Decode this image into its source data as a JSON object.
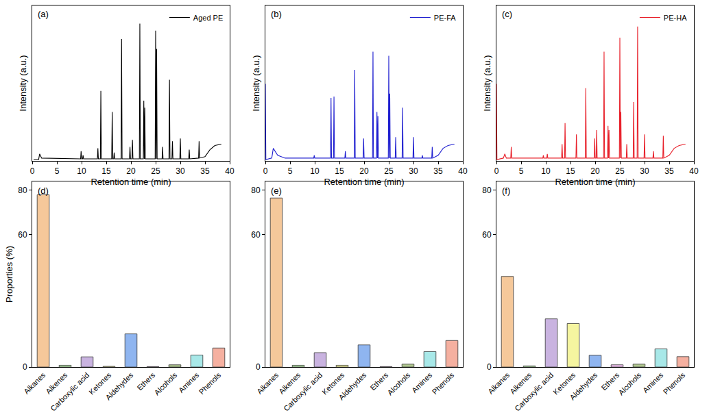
{
  "chart_data": [
    {
      "type": "line",
      "annotations": [
        "(a)"
      ],
      "x_label": "Retention time (min)",
      "y_label": "Intensity (a.u.)",
      "xlim": [
        0,
        40
      ],
      "xticks": [
        0,
        5,
        10,
        15,
        20,
        25,
        30,
        35,
        40
      ],
      "ylim": [
        0,
        111
      ],
      "tick_labels": "x",
      "legend": "top right",
      "x": [
        0.3,
        1.3,
        1.5,
        1.9,
        9.8,
        9.9,
        10.0,
        10.2,
        10.3,
        10.4,
        13.2,
        13.3,
        13.4,
        13.8,
        13.9,
        14.0,
        16.1,
        16.2,
        16.3,
        16.5,
        16.6,
        16.7,
        18.0,
        18.1,
        18.2,
        19.7,
        19.8,
        19.9,
        20.2,
        20.3,
        20.4,
        21.7,
        21.8,
        21.9,
        22.5,
        22.6,
        22.7,
        22.8,
        22.9,
        24.9,
        25.0,
        25.1,
        25.2,
        25.3,
        26.3,
        26.4,
        26.5,
        27.7,
        27.8,
        27.9,
        28.3,
        28.4,
        28.5,
        29.9,
        30.0,
        30.1,
        31.7,
        31.8,
        31.9,
        33.7,
        33.8,
        33.9,
        35.0,
        36.0,
        37.0,
        38.3
      ],
      "series": [
        {
          "name": "Aged PE",
          "color": "#000000",
          "values": [
            1,
            1,
            5,
            2,
            1.5,
            7,
            1.5,
            1.5,
            4,
            1.5,
            1.5,
            9,
            1.5,
            1.5,
            50,
            1.5,
            1.5,
            35,
            1.5,
            1.5,
            6,
            1.5,
            1.5,
            87,
            1.5,
            1.5,
            10,
            1.5,
            1.5,
            15,
            1.5,
            1.5,
            98,
            1.5,
            1.5,
            43,
            1.5,
            38,
            1.5,
            1.5,
            93,
            1.5,
            80,
            1.5,
            1.5,
            10,
            1.5,
            1.5,
            58,
            1.5,
            1.5,
            14,
            1.5,
            1.5,
            16,
            1.5,
            1.5,
            8,
            1.5,
            2,
            14,
            2,
            3,
            8,
            11,
            12
          ]
        }
      ]
    },
    {
      "type": "line",
      "annotations": [
        "(b)"
      ],
      "x_label": "Retention time (min)",
      "y_label": "Intensity (a.u.)",
      "xlim": [
        0,
        40
      ],
      "xticks": [
        0,
        5,
        10,
        15,
        20,
        25,
        30,
        35,
        40
      ],
      "ylim": [
        0,
        111
      ],
      "tick_labels": "x",
      "legend": "top right",
      "x": [
        0,
        0.1,
        1.3,
        1.6,
        2.5,
        4.0,
        9.8,
        9.9,
        10.0,
        13.2,
        13.3,
        13.4,
        13.8,
        13.9,
        14.0,
        16.1,
        16.2,
        16.3,
        18.0,
        18.1,
        18.2,
        19.8,
        19.9,
        20.0,
        21.7,
        21.8,
        21.9,
        22.5,
        22.6,
        22.7,
        22.8,
        22.9,
        24.9,
        25.0,
        25.1,
        25.2,
        25.3,
        26.3,
        26.4,
        26.5,
        27.7,
        27.8,
        27.9,
        29.9,
        30.0,
        30.1,
        31.7,
        31.8,
        31.9,
        33.7,
        33.8,
        33.9,
        35,
        36,
        37,
        38.3
      ],
      "series": [
        {
          "name": "PE-FA",
          "color": "#2020d0",
          "values": [
            55,
            1,
            2,
            9,
            4,
            2,
            2,
            4,
            2,
            2,
            45,
            2,
            2,
            46,
            2,
            2,
            7,
            2,
            2,
            65,
            2,
            2,
            16,
            2,
            2,
            78,
            2,
            2,
            35,
            2,
            32,
            2,
            2,
            75,
            2,
            48,
            2,
            2,
            17,
            2,
            2,
            38,
            2,
            2,
            17,
            2,
            2,
            4,
            2,
            2,
            10,
            2,
            4,
            9,
            11,
            12
          ]
        }
      ]
    },
    {
      "type": "line",
      "annotations": [
        "(c)"
      ],
      "x_label": "Retention time (min)",
      "y_label": "Intensity (a.u.)",
      "xlim": [
        0,
        40
      ],
      "xticks": [
        0,
        5,
        10,
        15,
        20,
        25,
        30,
        35,
        40
      ],
      "ylim": [
        0,
        111
      ],
      "tick_labels": "x",
      "legend": "top right",
      "x": [
        0,
        0.1,
        1.4,
        1.7,
        2.0,
        2.9,
        3.0,
        3.1,
        9.4,
        9.5,
        9.6,
        10.2,
        10.3,
        10.4,
        13.2,
        13.3,
        13.4,
        13.8,
        13.9,
        14.0,
        16.1,
        16.2,
        16.3,
        18.0,
        18.1,
        18.2,
        19.8,
        19.9,
        20.0,
        20.2,
        20.3,
        20.4,
        21.7,
        21.8,
        21.9,
        22.5,
        22.6,
        22.7,
        22.8,
        22.9,
        24.9,
        25.0,
        25.1,
        25.2,
        25.3,
        26.3,
        26.4,
        26.5,
        27.7,
        27.8,
        27.9,
        28.5,
        28.6,
        28.7,
        29.9,
        30.0,
        30.1,
        31.7,
        31.8,
        31.9,
        33.7,
        33.8,
        33.9,
        35,
        36,
        37,
        38.3
      ],
      "series": [
        {
          "name": "PE-HA",
          "color": "#e8202a",
          "values": [
            55,
            1,
            2,
            5,
            2,
            2,
            10,
            2,
            2,
            4,
            2,
            2,
            5,
            2,
            2,
            12,
            2,
            2,
            27,
            2,
            2,
            19,
            2,
            2,
            52,
            2,
            2,
            16,
            2,
            2,
            22,
            2,
            2,
            78,
            2,
            2,
            25,
            2,
            22,
            2,
            2,
            88,
            2,
            35,
            2,
            2,
            12,
            2,
            2,
            42,
            2,
            2,
            96,
            2,
            2,
            19,
            2,
            2,
            7,
            2,
            2,
            18,
            2,
            4,
            9,
            11,
            12
          ]
        }
      ]
    },
    {
      "type": "bar",
      "annotations": [
        "(d)"
      ],
      "y_label": "Proporties (%)",
      "categories": [
        "Alkanes",
        "Alkenes",
        "Carboxylic acid",
        "Ketones",
        "Aldehydes",
        "Ethers",
        "Alcohols",
        "Amines",
        "Phenols"
      ],
      "values": [
        78,
        0.8,
        4.6,
        0.3,
        15,
        0.2,
        1.0,
        5.4,
        8.6
      ],
      "colors": [
        "#f5c89a",
        "#b5e6a8",
        "#c9b3e0",
        "#f5f5a0",
        "#8fb5f0",
        "#f0c0f0",
        "#b0c890",
        "#a8e8e8",
        "#f5b0a0"
      ],
      "ylim": [
        0,
        84
      ],
      "yticks": [
        0,
        60,
        80
      ]
    },
    {
      "type": "bar",
      "annotations": [
        "(e)"
      ],
      "categories": [
        "Alkanes",
        "Alkenes",
        "Carboxylic acid",
        "Ketones",
        "Aldehydes",
        "Ethers",
        "Alcohols",
        "Amines",
        "Phenols"
      ],
      "values": [
        76.5,
        0.8,
        6.5,
        0.8,
        10,
        0.2,
        1.3,
        7,
        12
      ],
      "colors": [
        "#f5c89a",
        "#b5e6a8",
        "#c9b3e0",
        "#f5f5a0",
        "#8fb5f0",
        "#f0c0f0",
        "#b0c890",
        "#a8e8e8",
        "#f5b0a0"
      ],
      "ylim": [
        0,
        84
      ],
      "yticks": [
        0,
        60,
        80
      ]
    },
    {
      "type": "bar",
      "annotations": [
        "(f)"
      ],
      "categories": [
        "Alkanes",
        "Alkenes",
        "Carboxylic acid",
        "Ketones",
        "Aldehydes",
        "Ethers",
        "Alcohols",
        "Amines",
        "Phenols"
      ],
      "values": [
        41,
        0.5,
        21.8,
        19.7,
        5.3,
        1.0,
        1.3,
        8.2,
        4.7
      ],
      "colors": [
        "#f5c89a",
        "#b5e6a8",
        "#c9b3e0",
        "#f5f5a0",
        "#8fb5f0",
        "#f0c0f0",
        "#b0c890",
        "#a8e8e8",
        "#f5b0a0"
      ],
      "ylim": [
        0,
        84
      ],
      "yticks": [
        0,
        60,
        80
      ]
    }
  ]
}
